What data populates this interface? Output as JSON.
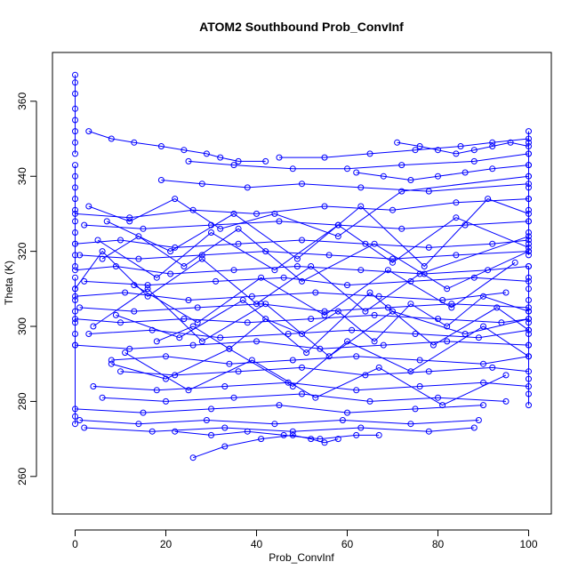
{
  "chart_data": {
    "type": "line",
    "title": "ATOM2 Southbound Prob_ConvInf",
    "xlabel": "Prob_ConvInf",
    "ylabel": "Theta (K)",
    "xlim": [
      -5,
      105
    ],
    "ylim": [
      250,
      373
    ],
    "xticks": [
      0,
      20,
      40,
      60,
      80,
      100
    ],
    "yticks": [
      260,
      280,
      300,
      320,
      340,
      360
    ],
    "grid": false,
    "legend": "none",
    "marker": "open-circle",
    "color": "#0000ff",
    "description_note": "",
    "series": [
      {
        "x": [
          0,
          0,
          0,
          0,
          0,
          0,
          0,
          0
        ],
        "y": [
          367,
          365,
          362,
          358,
          355,
          352,
          349,
          346
        ]
      },
      {
        "x": [
          0,
          0,
          0,
          0,
          0,
          0,
          0,
          0,
          0,
          0
        ],
        "y": [
          343,
          340,
          337,
          334,
          331,
          328,
          325,
          322,
          319,
          316
        ]
      },
      {
        "x": [
          0,
          0,
          0,
          0,
          0,
          0,
          0,
          0,
          0
        ],
        "y": [
          313,
          310,
          307,
          304,
          301,
          298,
          295,
          276,
          274
        ]
      },
      {
        "x": [
          100,
          100,
          100,
          100,
          100,
          100,
          100,
          100,
          100,
          100,
          100,
          100
        ],
        "y": [
          352,
          349,
          346,
          343,
          340,
          337,
          334,
          331,
          328,
          325,
          322,
          319
        ]
      },
      {
        "x": [
          100,
          100,
          100,
          100,
          100,
          100,
          100,
          100,
          100,
          100,
          100,
          100
        ],
        "y": [
          316,
          313,
          310,
          307,
          304,
          301,
          298,
          295,
          292,
          286,
          282,
          279
        ]
      },
      {
        "x": [
          3,
          8,
          13,
          19,
          24,
          29,
          32,
          36,
          42
        ],
        "y": [
          352,
          350,
          349,
          348,
          347,
          346,
          345,
          344,
          344
        ]
      },
      {
        "x": [
          45,
          55,
          65,
          75,
          85,
          92,
          100
        ],
        "y": [
          345,
          345,
          346,
          347,
          348,
          349,
          350
        ]
      },
      {
        "x": [
          25,
          35,
          48,
          60,
          72,
          88,
          100
        ],
        "y": [
          344,
          343,
          342,
          342,
          343,
          344,
          346
        ]
      },
      {
        "x": [
          19,
          28,
          38,
          50,
          63,
          78,
          100
        ],
        "y": [
          339,
          338,
          337,
          338,
          337,
          336,
          338
        ]
      },
      {
        "x": [
          0,
          12,
          26,
          40,
          55,
          70,
          84,
          100
        ],
        "y": [
          330,
          329,
          331,
          330,
          332,
          331,
          333,
          334
        ]
      },
      {
        "x": [
          2,
          15,
          30,
          45,
          58,
          72,
          86,
          100
        ],
        "y": [
          327,
          326,
          327,
          328,
          327,
          326,
          327,
          328
        ]
      },
      {
        "x": [
          0,
          10,
          22,
          36,
          50,
          64,
          78,
          92,
          100
        ],
        "y": [
          322,
          323,
          321,
          322,
          323,
          322,
          321,
          322,
          323
        ]
      },
      {
        "x": [
          1,
          14,
          28,
          42,
          56,
          70,
          84,
          100
        ],
        "y": [
          319,
          318,
          319,
          320,
          319,
          318,
          319,
          320
        ]
      },
      {
        "x": [
          0,
          9,
          21,
          35,
          49,
          63,
          77,
          91,
          100
        ],
        "y": [
          315,
          316,
          314,
          315,
          316,
          315,
          314,
          315,
          316
        ]
      },
      {
        "x": [
          2,
          16,
          31,
          46,
          60,
          74,
          88,
          100
        ],
        "y": [
          312,
          311,
          312,
          313,
          311,
          312,
          313,
          312
        ]
      },
      {
        "x": [
          0,
          11,
          25,
          39,
          53,
          67,
          81,
          95
        ],
        "y": [
          308,
          309,
          307,
          308,
          309,
          308,
          307,
          309
        ]
      },
      {
        "x": [
          1,
          13,
          27,
          41,
          55,
          69,
          83,
          100
        ],
        "y": [
          305,
          304,
          305,
          306,
          304,
          305,
          306,
          305
        ]
      },
      {
        "x": [
          0,
          10,
          24,
          38,
          52,
          66,
          80,
          94,
          100
        ],
        "y": [
          302,
          301,
          302,
          301,
          302,
          303,
          302,
          301,
          302
        ]
      },
      {
        "x": [
          3,
          17,
          32,
          47,
          61,
          75,
          89,
          100
        ],
        "y": [
          298,
          299,
          297,
          298,
          299,
          298,
          297,
          299
        ]
      },
      {
        "x": [
          0,
          12,
          26,
          40,
          54,
          68,
          82,
          100
        ],
        "y": [
          295,
          294,
          295,
          296,
          294,
          295,
          296,
          295
        ]
      },
      {
        "x": [
          8,
          20,
          34,
          48,
          62,
          76,
          90,
          100
        ],
        "y": [
          291,
          292,
          290,
          291,
          292,
          291,
          290,
          292
        ]
      },
      {
        "x": [
          10,
          22,
          36,
          50,
          64,
          78,
          92,
          100
        ],
        "y": [
          288,
          287,
          288,
          289,
          287,
          288,
          289,
          288
        ]
      },
      {
        "x": [
          4,
          18,
          33,
          47,
          62,
          76,
          90,
          100
        ],
        "y": [
          284,
          283,
          284,
          285,
          283,
          284,
          285,
          284
        ]
      },
      {
        "x": [
          6,
          20,
          35,
          50,
          65,
          80,
          95
        ],
        "y": [
          281,
          280,
          281,
          282,
          280,
          281,
          280
        ]
      },
      {
        "x": [
          0,
          15,
          30,
          45,
          60,
          75,
          90
        ],
        "y": [
          278,
          277,
          278,
          279,
          277,
          278,
          279
        ]
      },
      {
        "x": [
          1,
          14,
          29,
          44,
          59,
          74,
          89
        ],
        "y": [
          275,
          274,
          275,
          274,
          275,
          274,
          275
        ]
      },
      {
        "x": [
          2,
          17,
          33,
          48,
          63,
          78,
          88
        ],
        "y": [
          273,
          272,
          273,
          272,
          273,
          272,
          273
        ]
      },
      {
        "x": [
          26,
          33,
          41,
          48,
          52,
          55,
          58
        ],
        "y": [
          265,
          268,
          270,
          271,
          270,
          269,
          270
        ]
      },
      {
        "x": [
          22,
          30,
          38,
          46,
          54,
          62,
          67
        ],
        "y": [
          272,
          271,
          272,
          271,
          270,
          271,
          271
        ]
      },
      {
        "x": [
          6,
          14,
          24,
          36,
          50,
          66,
          82,
          100
        ],
        "y": [
          318,
          324,
          316,
          326,
          312,
          322,
          310,
          320
        ]
      },
      {
        "x": [
          4,
          16,
          28,
          42,
          56,
          70,
          86,
          100
        ],
        "y": [
          300,
          310,
          296,
          306,
          292,
          304,
          298,
          302
        ]
      },
      {
        "x": [
          8,
          20,
          34,
          48,
          60,
          74,
          90,
          100
        ],
        "y": [
          290,
          286,
          294,
          284,
          296,
          288,
          300,
          292
        ]
      },
      {
        "x": [
          3,
          12,
          22,
          32,
          44,
          58,
          72,
          100
        ],
        "y": [
          332,
          328,
          334,
          326,
          330,
          324,
          336,
          340
        ]
      },
      {
        "x": [
          0,
          6,
          16,
          28,
          40,
          52,
          64,
          76,
          100
        ],
        "y": [
          310,
          320,
          308,
          318,
          306,
          316,
          304,
          314,
          324
        ]
      },
      {
        "x": [
          5,
          18,
          30,
          44,
          58,
          70,
          84,
          100
        ],
        "y": [
          323,
          313,
          325,
          315,
          327,
          317,
          329,
          321
        ]
      },
      {
        "x": [
          9,
          23,
          37,
          51,
          65,
          79,
          93,
          100
        ],
        "y": [
          303,
          297,
          307,
          293,
          309,
          295,
          305,
          299
        ]
      },
      {
        "x": [
          11,
          25,
          39,
          53,
          67,
          81,
          95
        ],
        "y": [
          293,
          283,
          291,
          281,
          289,
          279,
          287
        ]
      },
      {
        "x": [
          7,
          21,
          35,
          49,
          63,
          77,
          91,
          100
        ],
        "y": [
          328,
          320,
          330,
          318,
          332,
          316,
          334,
          330
        ]
      },
      {
        "x": [
          13,
          27,
          41,
          55,
          69,
          83,
          97
        ],
        "y": [
          311,
          301,
          313,
          303,
          315,
          305,
          317
        ]
      },
      {
        "x": [
          71,
          76,
          80,
          84,
          88,
          92,
          96,
          100
        ],
        "y": [
          349,
          348,
          347,
          346,
          347,
          348,
          349,
          348
        ]
      },
      {
        "x": [
          62,
          68,
          74,
          80,
          86,
          92,
          100
        ],
        "y": [
          341,
          340,
          339,
          340,
          341,
          342,
          343
        ]
      },
      {
        "x": [
          18,
          26,
          34,
          42,
          50,
          58,
          66,
          74,
          82,
          90,
          100
        ],
        "y": [
          296,
          300,
          294,
          302,
          298,
          304,
          296,
          306,
          300,
          308,
          304
        ]
      }
    ]
  }
}
